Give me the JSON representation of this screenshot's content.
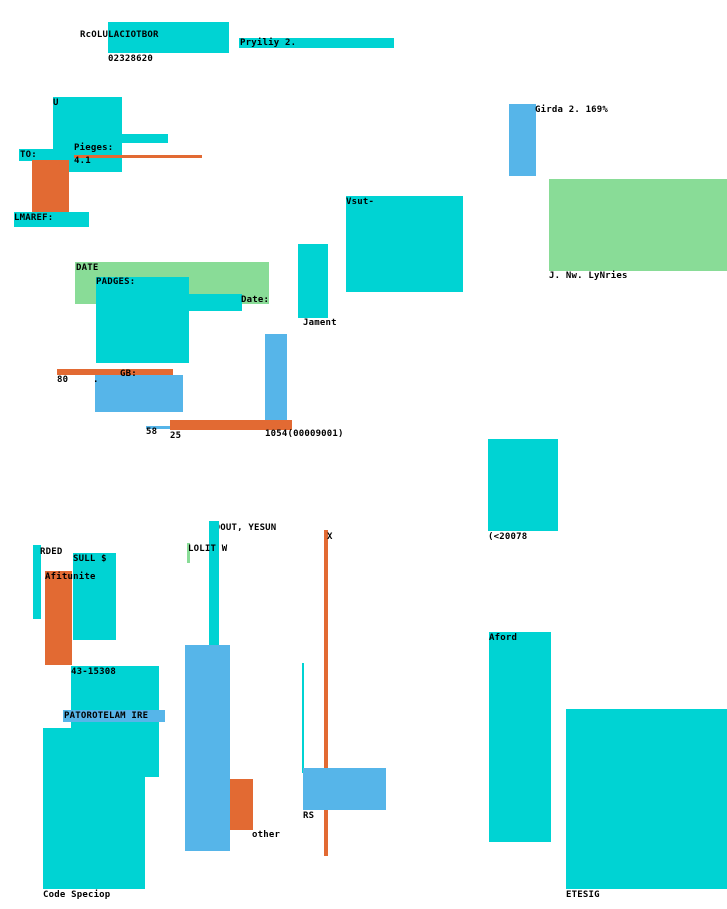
{
  "labels": {
    "title_code": "RcOLULACIOTBOR",
    "number_top": "02328620",
    "pryiliy": "Pryiliy 2.",
    "u_mark": "U",
    "to_label": "TO:",
    "pieges": "Pieges:",
    "pieges_value": "4.1",
    "lmaref": "LMAREF:",
    "girda": "Girda 2. 169%",
    "vsut": "Vsut-",
    "nw_lynries": "J. Nw. LyNries",
    "date_upper": "DATE",
    "padges": "PADGES:",
    "date_label": "Date:",
    "jament": "Jament",
    "n80": "80",
    "dot_mark": ".",
    "gb": "GB:",
    "n58": "58",
    "n25": "25",
    "ref_number": "1054(00009001)",
    "code_20078": "(<20078",
    "coout": "COOUT, YESUN",
    "x_mark": "X",
    "rded": "RDED",
    "sull": "SULL $",
    "lolit": "LOLIT W",
    "afitunite": "Afitunite",
    "phone": "43-15308",
    "patorotelam": "PATOROTELAM IRE",
    "aford": "Aford",
    "rs": "RS",
    "other": "other",
    "code_speciop": "Code Speciop",
    "etesig": "ETESIG"
  },
  "colors": {
    "cyan": "#00d3d3",
    "blue": "#56b5e9",
    "orange": "#e26a33",
    "green": "#89dc97"
  }
}
